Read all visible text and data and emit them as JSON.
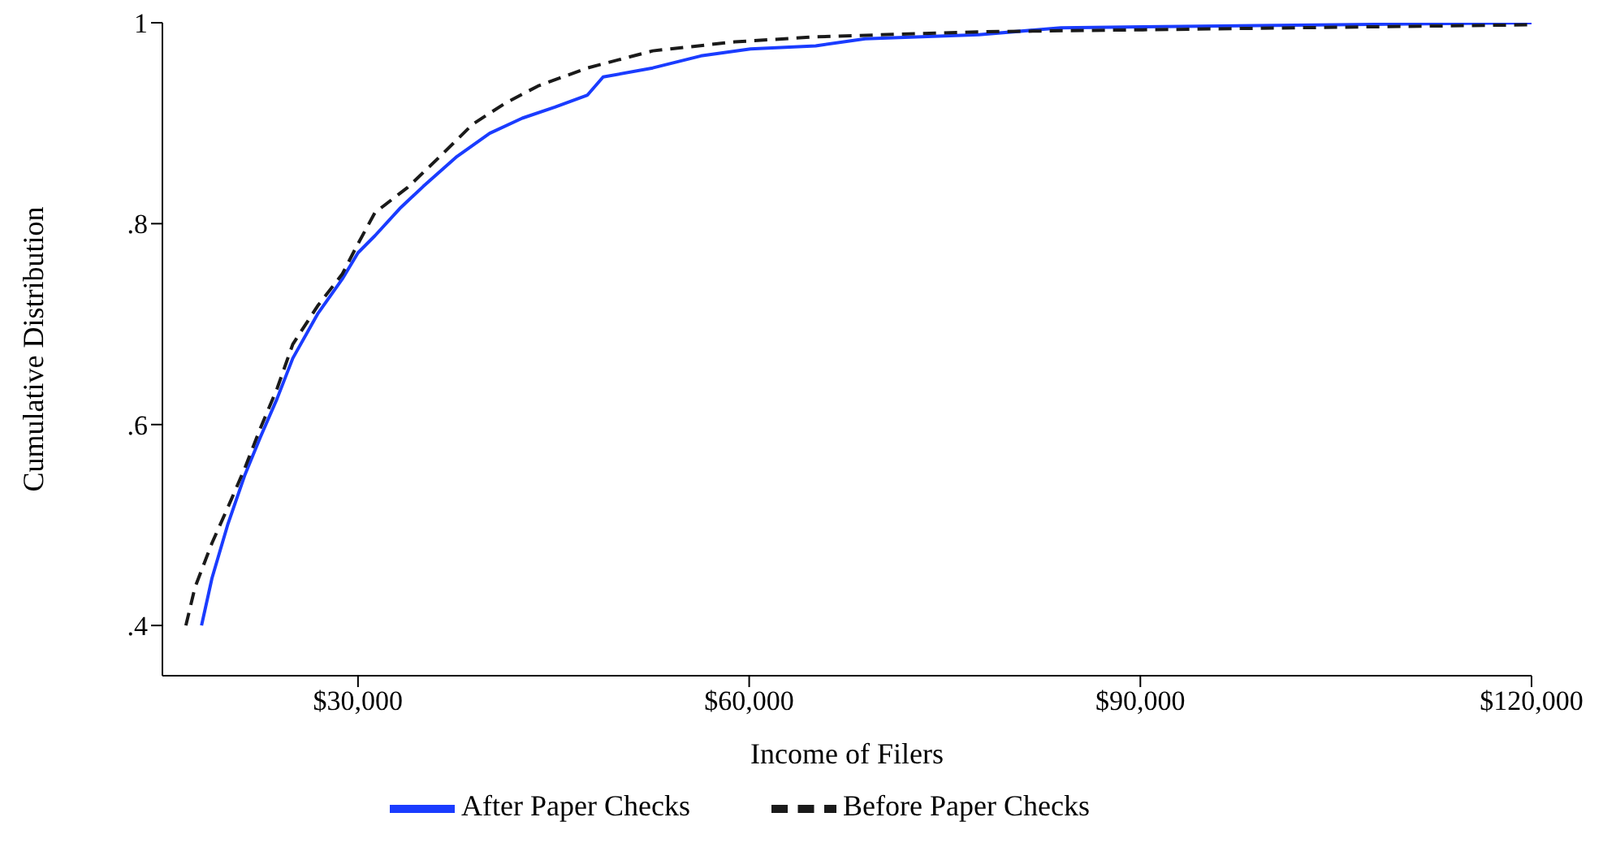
{
  "chart_data": {
    "type": "line",
    "xlabel": "Income of Filers",
    "ylabel": "Cumulative Distribution",
    "xlim": [
      15000,
      120000
    ],
    "ylim": [
      0.35,
      1
    ],
    "xticks": [
      {
        "value": 30000,
        "label": "$30,000"
      },
      {
        "value": 60000,
        "label": "$60,000"
      },
      {
        "value": 90000,
        "label": "$90,000"
      },
      {
        "value": 120000,
        "label": "$120,000"
      }
    ],
    "yticks": [
      {
        "value": 0.4,
        "label": ".4"
      },
      {
        "value": 0.6,
        "label": ".6"
      },
      {
        "value": 0.8,
        "label": ".8"
      },
      {
        "value": 1,
        "label": "1"
      }
    ],
    "grid": false,
    "legend": "bottom",
    "marker": "none",
    "series": [
      {
        "name": "After Paper Checks",
        "color": "#1a3cff",
        "line_style": "solid",
        "x": [
          18000,
          18800,
          20000,
          21300,
          22500,
          23800,
          25000,
          26900,
          28800,
          30000,
          31300,
          33200,
          35000,
          37600,
          40100,
          42600,
          45100,
          47600,
          48800,
          52600,
          56300,
          60100,
          65100,
          68900,
          77600,
          83900,
          90200,
          120000
        ],
        "values": [
          0.4,
          0.447,
          0.5,
          0.549,
          0.587,
          0.626,
          0.666,
          0.71,
          0.745,
          0.771,
          0.788,
          0.815,
          0.837,
          0.867,
          0.89,
          0.905,
          0.916,
          0.928,
          0.946,
          0.955,
          0.967,
          0.974,
          0.977,
          0.984,
          0.988,
          0.995,
          0.996,
          1.0
        ]
      },
      {
        "name": "Before Paper Checks",
        "color": "#1a1a1a",
        "line_style": "dashed",
        "x": [
          16800,
          17500,
          18800,
          20000,
          21300,
          22500,
          23800,
          25000,
          26900,
          28800,
          30000,
          31300,
          33800,
          36300,
          38800,
          41300,
          43800,
          47600,
          52600,
          58900,
          65100,
          77600,
          90200,
          120000
        ],
        "values": [
          0.4,
          0.438,
          0.482,
          0.517,
          0.556,
          0.596,
          0.636,
          0.68,
          0.718,
          0.75,
          0.78,
          0.811,
          0.836,
          0.867,
          0.899,
          0.92,
          0.937,
          0.955,
          0.972,
          0.981,
          0.986,
          0.991,
          0.993,
          0.998
        ]
      }
    ]
  }
}
